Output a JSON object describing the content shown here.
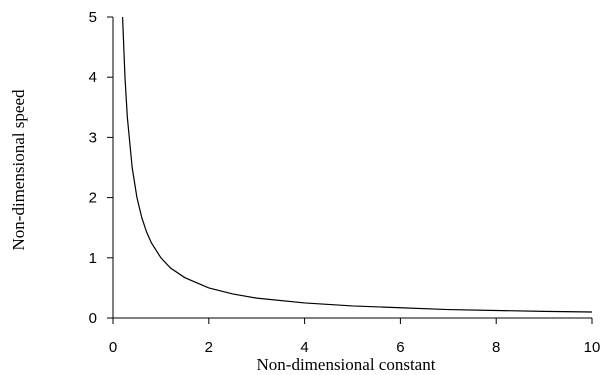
{
  "chart_data": {
    "type": "line",
    "xlabel": "Non-dimensional constant",
    "ylabel": "Non-dimensional speed",
    "xlim": [
      0,
      10
    ],
    "ylim": [
      0,
      5
    ],
    "x_ticks": [
      "0",
      "2",
      "4",
      "6",
      "8",
      "10"
    ],
    "y_ticks": [
      "0",
      "1",
      "2",
      "3",
      "4",
      "5"
    ],
    "grid": false,
    "series": [
      {
        "x": [
          0.2,
          0.25,
          0.3,
          0.4,
          0.5,
          0.6,
          0.7,
          0.8,
          1.0,
          1.2,
          1.5,
          2,
          2.5,
          3,
          4,
          5,
          6,
          7,
          8,
          9,
          10
        ],
        "y": [
          5.0,
          4.0,
          3.33,
          2.5,
          2.0,
          1.67,
          1.43,
          1.25,
          1.0,
          0.83,
          0.67,
          0.5,
          0.4,
          0.33,
          0.25,
          0.2,
          0.17,
          0.14,
          0.125,
          0.11,
          0.1
        ]
      }
    ]
  }
}
